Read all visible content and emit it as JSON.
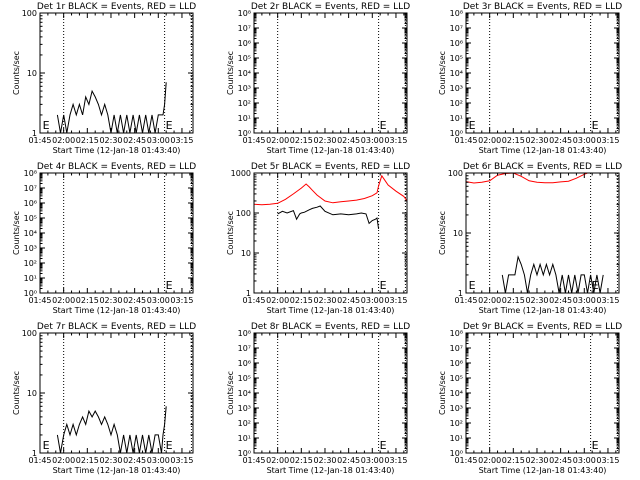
{
  "colors": {
    "background": "#ffffff",
    "axes": "#000000",
    "events": "#000000",
    "lld": "#ff0000"
  },
  "x_ticks": [
    "01:45",
    "02:00",
    "02:15",
    "02:30",
    "02:45",
    "03:00",
    "03:15"
  ],
  "xlabel": "Start Time (12-Jan-18 01:43:40)",
  "ylabel": "Counts/sec",
  "chart_data": [
    {
      "type": "line",
      "title": "Det 1r BLACK = Events, RED = LLD",
      "xlim": [
        "01:45",
        "03:22"
      ],
      "ylim": [
        1,
        100
      ],
      "yscale": "log",
      "y_ticks": [
        "1",
        "10",
        "100"
      ],
      "vlines": [
        "02:00",
        "03:04",
        "03:21"
      ],
      "markers": [
        {
          "label": "E",
          "x": "01:46"
        },
        {
          "label": "E",
          "x": "03:04"
        }
      ],
      "series": [
        {
          "color": "black",
          "x": [
            "01:56",
            "01:58",
            "02:00",
            "02:02",
            "02:04",
            "02:06",
            "02:08",
            "02:10",
            "02:12",
            "02:14",
            "02:16",
            "02:18",
            "02:20",
            "02:22",
            "02:24",
            "02:26",
            "02:28",
            "02:30",
            "02:32",
            "02:34",
            "02:36",
            "02:38",
            "02:40",
            "02:42",
            "02:44",
            "02:46",
            "02:48",
            "02:50",
            "02:52",
            "02:54",
            "02:56",
            "02:58",
            "03:00",
            "03:02",
            "03:03",
            "03:04",
            "03:05"
          ],
          "y": [
            2,
            1,
            2,
            1,
            2,
            3,
            2,
            3,
            2,
            4,
            3,
            5,
            4,
            3,
            2,
            3,
            2,
            1,
            2,
            1,
            2,
            1,
            2,
            1,
            2,
            1,
            2,
            1,
            2,
            1,
            2,
            1,
            2,
            2,
            2,
            3,
            7
          ]
        }
      ]
    },
    {
      "type": "line",
      "title": "Det 2r BLACK = Events, RED = LLD",
      "xlim": [
        "01:45",
        "03:22"
      ],
      "ylim": [
        1,
        100000000
      ],
      "yscale": "log",
      "y_ticks": [
        "10⁰",
        "10¹",
        "10²",
        "10³",
        "10⁴",
        "10⁵",
        "10⁶",
        "10⁷",
        "10⁸"
      ],
      "vlines": [
        "02:00",
        "03:04",
        "03:21"
      ],
      "markers": [
        {
          "label": "E",
          "x": "03:04"
        }
      ],
      "series": []
    },
    {
      "type": "line",
      "title": "Det 3r BLACK = Events, RED = LLD",
      "xlim": [
        "01:45",
        "03:22"
      ],
      "ylim": [
        1,
        100000000
      ],
      "yscale": "log",
      "y_ticks": [
        "10⁰",
        "10¹",
        "10²",
        "10³",
        "10⁴",
        "10⁵",
        "10⁶",
        "10⁷",
        "10⁸"
      ],
      "vlines": [
        "02:00",
        "03:04",
        "03:21"
      ],
      "markers": [
        {
          "label": "E",
          "x": "01:46"
        },
        {
          "label": "E",
          "x": "03:04"
        }
      ],
      "series": []
    },
    {
      "type": "line",
      "title": "Det 4r BLACK = Events, RED = LLD",
      "xlim": [
        "01:45",
        "03:22"
      ],
      "ylim": [
        1,
        100000000
      ],
      "yscale": "log",
      "y_ticks": [
        "10⁰",
        "10¹",
        "10²",
        "10³",
        "10⁴",
        "10⁵",
        "10⁶",
        "10⁷",
        "10⁸"
      ],
      "vlines": [
        "02:00",
        "03:04",
        "03:21"
      ],
      "markers": [
        {
          "label": "E",
          "x": "03:04"
        }
      ],
      "series": []
    },
    {
      "type": "line",
      "title": "Det 5r BLACK = Events, RED = LLD",
      "xlim": [
        "01:45",
        "03:22"
      ],
      "ylim": [
        1,
        1000
      ],
      "yscale": "log",
      "y_ticks": [
        "1",
        "10",
        "100",
        "1000"
      ],
      "vlines": [
        "02:00",
        "03:04",
        "03:21"
      ],
      "markers": [
        {
          "label": "E",
          "x": "03:04"
        }
      ],
      "series": [
        {
          "color": "red",
          "x": [
            "01:45",
            "01:50",
            "01:55",
            "02:00",
            "02:05",
            "02:10",
            "02:15",
            "02:18",
            "02:20",
            "02:22",
            "02:25",
            "02:30",
            "02:35",
            "02:40",
            "02:45",
            "02:50",
            "02:55",
            "03:00",
            "03:03",
            "03:04",
            "03:06",
            "03:10",
            "03:15",
            "03:20",
            "03:22"
          ],
          "y": [
            165,
            160,
            165,
            175,
            220,
            300,
            420,
            530,
            450,
            370,
            280,
            200,
            180,
            190,
            200,
            210,
            230,
            270,
            320,
            480,
            850,
            500,
            350,
            260,
            200
          ]
        },
        {
          "color": "black",
          "x": [
            "02:00",
            "02:03",
            "02:06",
            "02:10",
            "02:12",
            "02:14",
            "02:15",
            "02:17",
            "02:20",
            "02:22",
            "02:25",
            "02:27",
            "02:30",
            "02:35",
            "02:40",
            "02:45",
            "02:50",
            "02:53",
            "02:56",
            "02:58",
            "03:00",
            "03:02",
            "03:03",
            "03:04"
          ],
          "y": [
            95,
            110,
            100,
            115,
            70,
            95,
            100,
            105,
            120,
            130,
            140,
            150,
            110,
            90,
            95,
            90,
            95,
            100,
            95,
            55,
            65,
            70,
            75,
            40
          ]
        }
      ]
    },
    {
      "type": "line",
      "title": "Det 6r BLACK = Events, RED = LLD",
      "xlim": [
        "01:45",
        "03:22"
      ],
      "ylim": [
        1,
        100
      ],
      "yscale": "log",
      "y_ticks": [
        "1",
        "10",
        "100"
      ],
      "vlines": [
        "02:00",
        "03:04",
        "03:21"
      ],
      "markers": [
        {
          "label": "E",
          "x": "01:46"
        },
        {
          "label": "E",
          "x": "03:04"
        }
      ],
      "series": [
        {
          "color": "red",
          "x": [
            "01:45",
            "01:50",
            "01:55",
            "02:00",
            "02:05",
            "02:10",
            "02:15",
            "02:20",
            "02:25",
            "02:30",
            "02:35",
            "02:40",
            "02:45",
            "02:50",
            "02:55",
            "03:00",
            "03:02",
            "03:03"
          ],
          "y": [
            72,
            68,
            70,
            74,
            92,
            98,
            100,
            88,
            74,
            70,
            69,
            69,
            71,
            73,
            82,
            95,
            100,
            100
          ]
        },
        {
          "color": "black",
          "x": [
            "02:08",
            "02:10",
            "02:12",
            "02:14",
            "02:16",
            "02:18",
            "02:20",
            "02:22",
            "02:24",
            "02:26",
            "02:28",
            "02:30",
            "02:32",
            "02:34",
            "02:36",
            "02:38",
            "02:40",
            "02:42",
            "02:44",
            "02:46",
            "02:48",
            "02:50",
            "02:52",
            "02:54",
            "02:56",
            "02:58",
            "03:00",
            "03:02",
            "03:04",
            "03:06",
            "03:08",
            "03:10",
            "03:12"
          ],
          "y": [
            2,
            1,
            2,
            2,
            2,
            4,
            3,
            2,
            1,
            2,
            3,
            2,
            3,
            2,
            3,
            2,
            3,
            2,
            1,
            2,
            1,
            2,
            1,
            2,
            1,
            2,
            2,
            1,
            2,
            1,
            2,
            1,
            2
          ]
        }
      ]
    },
    {
      "type": "line",
      "title": "Det 7r BLACK = Events, RED = LLD",
      "xlim": [
        "01:45",
        "03:22"
      ],
      "ylim": [
        1,
        100
      ],
      "yscale": "log",
      "y_ticks": [
        "1",
        "10",
        "100"
      ],
      "vlines": [
        "02:00",
        "03:04",
        "03:21"
      ],
      "markers": [
        {
          "label": "E",
          "x": "01:46"
        },
        {
          "label": "E",
          "x": "03:04"
        }
      ],
      "series": [
        {
          "color": "black",
          "x": [
            "01:56",
            "01:58",
            "02:00",
            "02:02",
            "02:04",
            "02:06",
            "02:08",
            "02:10",
            "02:12",
            "02:14",
            "02:16",
            "02:18",
            "02:20",
            "02:22",
            "02:24",
            "02:26",
            "02:28",
            "02:30",
            "02:32",
            "02:34",
            "02:36",
            "02:38",
            "02:40",
            "02:42",
            "02:44",
            "02:46",
            "02:48",
            "02:50",
            "02:52",
            "02:54",
            "02:56",
            "02:58",
            "03:00",
            "03:02",
            "03:03",
            "03:04",
            "03:05"
          ],
          "y": [
            2,
            1,
            2,
            3,
            2,
            3,
            2,
            3,
            4,
            3,
            5,
            4,
            5,
            4,
            3,
            4,
            3,
            2,
            3,
            2,
            1,
            2,
            1,
            2,
            1,
            2,
            1,
            2,
            1,
            2,
            1,
            2,
            2,
            1,
            2,
            3,
            6
          ]
        }
      ]
    },
    {
      "type": "line",
      "title": "Det 8r BLACK = Events, RED = LLD",
      "xlim": [
        "01:45",
        "03:22"
      ],
      "ylim": [
        1,
        100000000
      ],
      "yscale": "log",
      "y_ticks": [
        "10⁰",
        "10¹",
        "10²",
        "10³",
        "10⁴",
        "10⁵",
        "10⁶",
        "10⁷",
        "10⁸"
      ],
      "vlines": [
        "02:00",
        "03:04",
        "03:21"
      ],
      "markers": [
        {
          "label": "E",
          "x": "03:04"
        }
      ],
      "series": []
    },
    {
      "type": "line",
      "title": "Det 9r BLACK = Events, RED = LLD",
      "xlim": [
        "01:45",
        "03:22"
      ],
      "ylim": [
        1,
        100000000
      ],
      "yscale": "log",
      "y_ticks": [
        "10⁰",
        "10¹",
        "10²",
        "10³",
        "10⁴",
        "10⁵",
        "10⁶",
        "10⁷",
        "10⁸"
      ],
      "vlines": [
        "02:00",
        "03:04",
        "03:21"
      ],
      "markers": [
        {
          "label": "E",
          "x": "03:04"
        }
      ],
      "series": []
    }
  ]
}
